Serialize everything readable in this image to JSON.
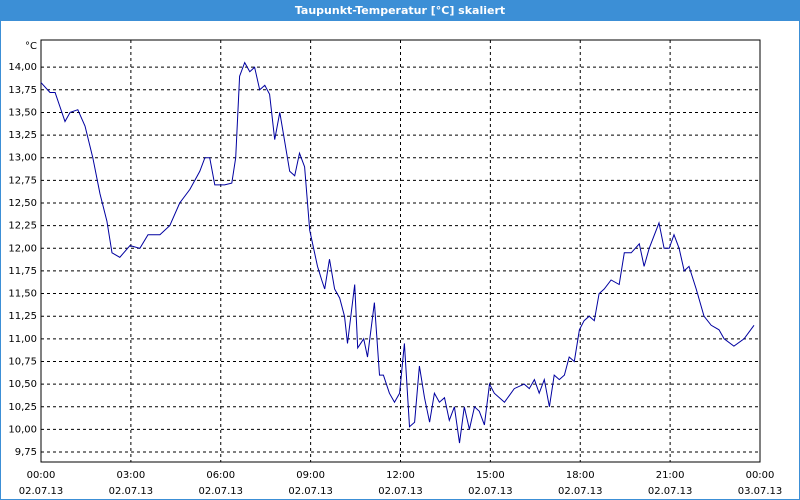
{
  "chart_data": {
    "type": "line",
    "title": "Taupunkt-Temperatur [°C] skaliert",
    "ylabel": "°C",
    "x": [
      0,
      0.3,
      0.47,
      0.8,
      0.97,
      1.23,
      1.47,
      1.73,
      1.97,
      2.2,
      2.37,
      2.63,
      2.97,
      3.3,
      3.57,
      3.97,
      4.3,
      4.63,
      4.97,
      5.3,
      5.47,
      5.63,
      5.8,
      6.13,
      6.37,
      6.5,
      6.63,
      6.8,
      6.97,
      7.13,
      7.3,
      7.47,
      7.63,
      7.8,
      7.97,
      8.3,
      8.47,
      8.63,
      8.8,
      8.97,
      9.23,
      9.37,
      9.47,
      9.63,
      9.8,
      9.97,
      10.13,
      10.23,
      10.47,
      10.57,
      10.77,
      10.9,
      11.13,
      11.3,
      11.43,
      11.63,
      11.8,
      11.97,
      12.13,
      12.3,
      12.47,
      12.63,
      12.8,
      12.97,
      13.13,
      13.3,
      13.47,
      13.63,
      13.8,
      13.97,
      14.13,
      14.3,
      14.47,
      14.63,
      14.8,
      14.97,
      15.13,
      15.47,
      15.8,
      16.13,
      16.3,
      16.47,
      16.63,
      16.8,
      16.97,
      17.13,
      17.3,
      17.47,
      17.63,
      17.8,
      17.97,
      18.13,
      18.3,
      18.47,
      18.63,
      18.8,
      19.03,
      19.3,
      19.47,
      19.7,
      19.97,
      20.13,
      20.3,
      20.63,
      20.8,
      20.97,
      21.13,
      21.3,
      21.47,
      21.63,
      21.87,
      22.13,
      22.37,
      22.63,
      22.8,
      23.13,
      23.47,
      23.8
    ],
    "series": [
      {
        "name": "Taupunkt-Temperatur",
        "color": "#0000a0",
        "values": [
          13.83,
          13.72,
          13.72,
          13.4,
          13.5,
          13.53,
          13.35,
          13.0,
          12.6,
          12.3,
          11.95,
          11.9,
          12.03,
          12.0,
          12.15,
          12.15,
          12.25,
          12.5,
          12.65,
          12.85,
          13.0,
          13.0,
          12.7,
          12.7,
          12.72,
          13.0,
          13.9,
          14.05,
          13.95,
          14.0,
          13.75,
          13.8,
          13.7,
          13.2,
          13.5,
          12.85,
          12.8,
          13.05,
          12.9,
          12.2,
          11.8,
          11.65,
          11.55,
          11.88,
          11.55,
          11.45,
          11.25,
          10.95,
          11.6,
          10.9,
          11.0,
          10.8,
          11.4,
          10.6,
          10.6,
          10.4,
          10.3,
          10.4,
          10.95,
          10.03,
          10.08,
          10.7,
          10.35,
          10.08,
          10.4,
          10.3,
          10.35,
          10.1,
          10.25,
          9.85,
          10.25,
          10.0,
          10.25,
          10.2,
          10.05,
          10.5,
          10.4,
          10.3,
          10.45,
          10.5,
          10.45,
          10.55,
          10.4,
          10.55,
          10.25,
          10.6,
          10.55,
          10.6,
          10.8,
          10.75,
          11.1,
          11.2,
          11.25,
          11.2,
          11.5,
          11.55,
          11.65,
          11.6,
          11.95,
          11.95,
          12.05,
          11.8,
          12.0,
          12.28,
          12.0,
          12.0,
          12.15,
          12.0,
          11.75,
          11.8,
          11.55,
          11.25,
          11.15,
          11.1,
          11.0,
          10.92,
          11.0,
          11.15
        ]
      }
    ],
    "xlim": [
      0,
      24
    ],
    "xticks": [
      {
        "value": 0,
        "label": "00:00",
        "date": "02.07.13"
      },
      {
        "value": 3,
        "label": "03:00",
        "date": "02.07.13"
      },
      {
        "value": 6,
        "label": "06:00",
        "date": "02.07.13"
      },
      {
        "value": 9,
        "label": "09:00",
        "date": "02.07.13"
      },
      {
        "value": 12,
        "label": "12:00",
        "date": "02.07.13"
      },
      {
        "value": 15,
        "label": "15:00",
        "date": "02.07.13"
      },
      {
        "value": 18,
        "label": "18:00",
        "date": "02.07.13"
      },
      {
        "value": 21,
        "label": "21:00",
        "date": "02.07.13"
      },
      {
        "value": 24,
        "label": "00:00",
        "date": "03.07.13"
      }
    ],
    "ylim": [
      9.64,
      14.3
    ],
    "yticks": [
      {
        "value": 9.75,
        "label": "9,75"
      },
      {
        "value": 10,
        "label": "10,00"
      },
      {
        "value": 10.25,
        "label": "10,25"
      },
      {
        "value": 10.5,
        "label": "10,50"
      },
      {
        "value": 10.75,
        "label": "10,75"
      },
      {
        "value": 11,
        "label": "11,00"
      },
      {
        "value": 11.25,
        "label": "11,25"
      },
      {
        "value": 11.5,
        "label": "11,50"
      },
      {
        "value": 11.75,
        "label": "11,75"
      },
      {
        "value": 12,
        "label": "12,00"
      },
      {
        "value": 12.25,
        "label": "12,25"
      },
      {
        "value": 12.5,
        "label": "12,50"
      },
      {
        "value": 12.75,
        "label": "12,75"
      },
      {
        "value": 13,
        "label": "13,00"
      },
      {
        "value": 13.25,
        "label": "13,25"
      },
      {
        "value": 13.5,
        "label": "13,50"
      },
      {
        "value": 13.75,
        "label": "13,75"
      },
      {
        "value": 14,
        "label": "14,00"
      }
    ],
    "grid": true
  }
}
